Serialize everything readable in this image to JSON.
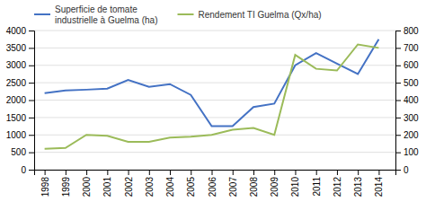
{
  "chart_data": {
    "type": "line",
    "x": [
      1998,
      1999,
      2000,
      2001,
      2002,
      2003,
      2004,
      2005,
      2006,
      2007,
      2008,
      2009,
      2010,
      2011,
      2012,
      2013,
      2014
    ],
    "series": [
      {
        "name": "Superficie de tomate\nindustrielle à Guelma (ha)",
        "color": "#4472C4",
        "values": [
          2200,
          2280,
          2300,
          2330,
          2580,
          2380,
          2460,
          2150,
          1250,
          1250,
          1800,
          1900,
          3000,
          3350,
          3050,
          2750,
          3750
        ]
      },
      {
        "name": "Rendement TI Guelma (Qx/ha)",
        "color": "#9BBB59",
        "axis": "y2",
        "values": [
          120,
          125,
          200,
          195,
          160,
          160,
          185,
          190,
          200,
          230,
          240,
          200,
          660,
          580,
          570,
          720,
          700
        ]
      }
    ],
    "xlim": [
      1997.5,
      2014.8
    ],
    "xticks": [
      1998,
      1999,
      2000,
      2001,
      2002,
      2003,
      2004,
      2005,
      2006,
      2007,
      2008,
      2009,
      2010,
      2011,
      2012,
      2013,
      2014
    ],
    "ylim": [
      0,
      4000
    ],
    "yticks": [
      0,
      500,
      1000,
      1500,
      2000,
      2500,
      3000,
      3500,
      4000
    ],
    "y2lim": [
      0,
      800
    ],
    "y2ticks": [
      0,
      100,
      200,
      300,
      400,
      500,
      600,
      700,
      800
    ],
    "grid": true,
    "legend": "top"
  }
}
